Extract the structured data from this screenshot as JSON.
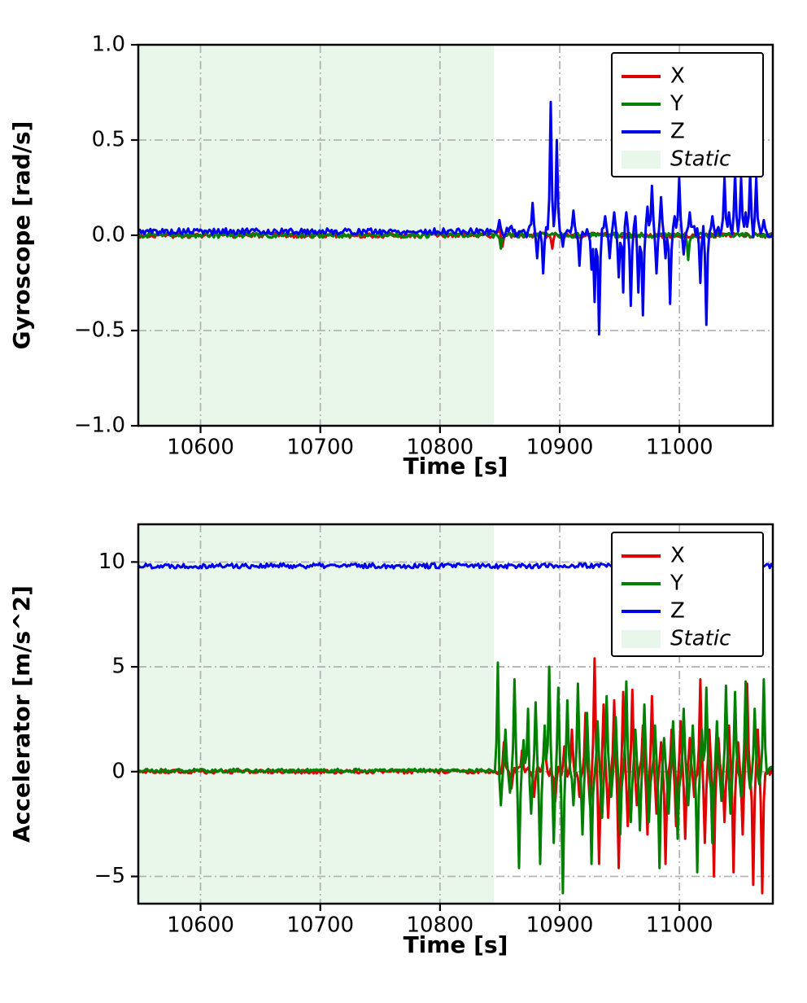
{
  "figure": {
    "background": "#ffffff"
  },
  "chart_data": [
    {
      "name": "gyroscope",
      "type": "line",
      "title": "",
      "xlabel": "Time [s]",
      "ylabel": "Gyroscope [rad/s]",
      "xlim": [
        10548,
        11078
      ],
      "ylim": [
        -1.0,
        1.0
      ],
      "xticks": [
        10600,
        10700,
        10800,
        10900,
        11000
      ],
      "xtick_labels": [
        "10600",
        "10700",
        "10800",
        "10900",
        "11000"
      ],
      "yticks": [
        -1.0,
        -0.5,
        0.0,
        0.5,
        1.0
      ],
      "ytick_labels": [
        "−1.0",
        "−0.5",
        "0.0",
        "0.5",
        "1.0"
      ],
      "grid": true,
      "legend_position": "upper-right",
      "legend": [
        "X",
        "Y",
        "Z",
        "Static"
      ],
      "static_region": {
        "label": "Static",
        "x0": 10548,
        "x1": 10845,
        "color": "#e8f7e9"
      },
      "series": [
        {
          "name": "X",
          "color": "#e00000",
          "baseline": 0,
          "noise": 0.013,
          "spikes": [
            [
              10850,
              0.07
            ],
            [
              10852,
              -0.06
            ],
            [
              10894,
              -0.07
            ]
          ]
        },
        {
          "name": "Y",
          "color": "#008000",
          "baseline": 0,
          "noise": 0.013,
          "spikes": [
            [
              10851,
              -0.07
            ],
            [
              11007,
              -0.13
            ]
          ]
        },
        {
          "name": "Z",
          "color": "#0000ee",
          "baseline": 0.02,
          "noise": 0.016,
          "noise2": 0.03,
          "noise2_from": 10848,
          "spikes": [
            [
              10849,
              0.08
            ],
            [
              10877,
              0.17
            ],
            [
              10881,
              -0.12
            ],
            [
              10886,
              -0.2
            ],
            [
              10893,
              0.7
            ],
            [
              10897,
              0.5
            ],
            [
              10902,
              -0.06
            ],
            [
              10912,
              0.13
            ],
            [
              10917,
              -0.16
            ],
            [
              10926,
              -0.18
            ],
            [
              10929,
              -0.35
            ],
            [
              10933,
              -0.52
            ],
            [
              10938,
              0.1
            ],
            [
              10942,
              -0.12
            ],
            [
              10946,
              0.12
            ],
            [
              10949,
              -0.22
            ],
            [
              10953,
              -0.3
            ],
            [
              10956,
              0.12
            ],
            [
              10959,
              -0.37
            ],
            [
              10963,
              0.1
            ],
            [
              10966,
              -0.3
            ],
            [
              10969,
              -0.42
            ],
            [
              10973,
              0.15
            ],
            [
              10977,
              0.26
            ],
            [
              10981,
              -0.2
            ],
            [
              10985,
              0.2
            ],
            [
              10988,
              -0.12
            ],
            [
              10992,
              -0.36
            ],
            [
              10996,
              0.1
            ],
            [
              11000,
              0.3
            ],
            [
              11004,
              -0.1
            ],
            [
              11008,
              0.12
            ],
            [
              11018,
              -0.25
            ],
            [
              11022,
              -0.47
            ],
            [
              11027,
              0.1
            ],
            [
              11037,
              0.3
            ],
            [
              11041,
              0.12
            ],
            [
              11046,
              0.33
            ],
            [
              11051,
              0.3
            ],
            [
              11055,
              0.12
            ],
            [
              11059,
              0.33
            ],
            [
              11064,
              0.3
            ],
            [
              11070,
              0.08
            ]
          ]
        }
      ]
    },
    {
      "name": "accelerator",
      "type": "line",
      "title": "",
      "xlabel": "Time [s]",
      "ylabel": "Accelerator [m/s^2]",
      "xlim": [
        10548,
        11078
      ],
      "ylim": [
        -6.3,
        11.8
      ],
      "xticks": [
        10600,
        10700,
        10800,
        10900,
        11000
      ],
      "xtick_labels": [
        "10600",
        "10700",
        "10800",
        "10900",
        "11000"
      ],
      "yticks": [
        -5,
        0,
        5,
        10
      ],
      "ytick_labels": [
        "−5",
        "0",
        "5",
        "10"
      ],
      "grid": true,
      "legend_position": "upper-right",
      "legend": [
        "X",
        "Y",
        "Z",
        "Static"
      ],
      "static_region": {
        "label": "Static",
        "x0": 10548,
        "x1": 10845,
        "color": "#e8f7e9"
      },
      "series": [
        {
          "name": "X",
          "color": "#e00000",
          "baseline": 0,
          "noise": 0.09,
          "noise2": 0.25,
          "noise2_from": 10847,
          "spikes": [
            [
              10853,
              1.4
            ],
            [
              10860,
              -0.8
            ],
            [
              10868,
              1.0
            ],
            [
              10878,
              -1.2
            ],
            [
              10888,
              2.0
            ],
            [
              10896,
              -1.4
            ],
            [
              10904,
              1.2
            ],
            [
              10910,
              2.0
            ],
            [
              10916,
              -1.2
            ],
            [
              10921,
              2.8
            ],
            [
              10925,
              -1.6
            ],
            [
              10929,
              5.4
            ],
            [
              10933,
              -4.4
            ],
            [
              10937,
              3.2
            ],
            [
              10941,
              -2.2
            ],
            [
              10945,
              3.4
            ],
            [
              10949,
              -4.6
            ],
            [
              10953,
              3.8
            ],
            [
              10957,
              -2.6
            ],
            [
              10961,
              3.9
            ],
            [
              10965,
              -1.6
            ],
            [
              10969,
              2.2
            ],
            [
              10973,
              -3.0
            ],
            [
              10977,
              3.6
            ],
            [
              10981,
              -2.0
            ],
            [
              10985,
              1.4
            ],
            [
              10989,
              -4.4
            ],
            [
              10993,
              2.0
            ],
            [
              10997,
              -2.6
            ],
            [
              11001,
              2.4
            ],
            [
              11005,
              -3.2
            ],
            [
              11009,
              1.6
            ],
            [
              11013,
              -1.2
            ],
            [
              11017,
              4.4
            ],
            [
              11021,
              -3.4
            ],
            [
              11025,
              2.0
            ],
            [
              11029,
              -5.0
            ],
            [
              11033,
              1.6
            ],
            [
              11037,
              -2.4
            ],
            [
              11041,
              2.2
            ],
            [
              11045,
              -4.8
            ],
            [
              11049,
              1.4
            ],
            [
              11053,
              -3.0
            ],
            [
              11057,
              4.2
            ],
            [
              11061,
              -5.4
            ],
            [
              11065,
              2.0
            ],
            [
              11069,
              -5.8
            ]
          ]
        },
        {
          "name": "Y",
          "color": "#008000",
          "baseline": 0.05,
          "noise": 0.09,
          "noise2": 0.25,
          "noise2_from": 10846,
          "spikes": [
            [
              10848,
              5.2
            ],
            [
              10851,
              -1.6
            ],
            [
              10855,
              2.0
            ],
            [
              10858,
              -1.0
            ],
            [
              10862,
              4.4
            ],
            [
              10866,
              -4.6
            ],
            [
              10870,
              1.5
            ],
            [
              10873,
              3.0
            ],
            [
              10876,
              -2.0
            ],
            [
              10880,
              3.3
            ],
            [
              10884,
              -4.4
            ],
            [
              10888,
              2.2
            ],
            [
              10891,
              5.0
            ],
            [
              10895,
              -3.4
            ],
            [
              10899,
              4.0
            ],
            [
              10903,
              -5.8
            ],
            [
              10907,
              3.4
            ],
            [
              10911,
              -1.6
            ],
            [
              10915,
              4.2
            ],
            [
              10919,
              -3.0
            ],
            [
              10923,
              2.8
            ],
            [
              10927,
              -4.4
            ],
            [
              10931,
              2.4
            ],
            [
              10935,
              -2.2
            ],
            [
              10939,
              3.6
            ],
            [
              10943,
              -1.2
            ],
            [
              10947,
              2.6
            ],
            [
              10951,
              -3.0
            ],
            [
              10955,
              4.3
            ],
            [
              10959,
              -2.4
            ],
            [
              10963,
              2.0
            ],
            [
              10967,
              -2.8
            ],
            [
              10971,
              3.2
            ],
            [
              10975,
              -2.4
            ],
            [
              10979,
              2.2
            ],
            [
              10983,
              -4.6
            ],
            [
              10987,
              1.6
            ],
            [
              10991,
              -2.0
            ],
            [
              10995,
              2.4
            ],
            [
              10999,
              -3.2
            ],
            [
              11003,
              3.0
            ],
            [
              11007,
              -1.6
            ],
            [
              11011,
              2.2
            ],
            [
              11015,
              -4.8
            ],
            [
              11019,
              2.0
            ],
            [
              11023,
              4.0
            ],
            [
              11027,
              -3.4
            ],
            [
              11031,
              2.4
            ],
            [
              11035,
              -1.4
            ],
            [
              11039,
              4.1
            ],
            [
              11043,
              -2.0
            ],
            [
              11047,
              3.8
            ],
            [
              11051,
              -1.2
            ],
            [
              11055,
              4.3
            ],
            [
              11059,
              -0.8
            ],
            [
              11063,
              3.0
            ],
            [
              11067,
              -0.6
            ],
            [
              11071,
              4.4
            ]
          ]
        },
        {
          "name": "Z",
          "color": "#0000ee",
          "baseline": 9.82,
          "noise": 0.12,
          "spikes": []
        }
      ]
    }
  ]
}
